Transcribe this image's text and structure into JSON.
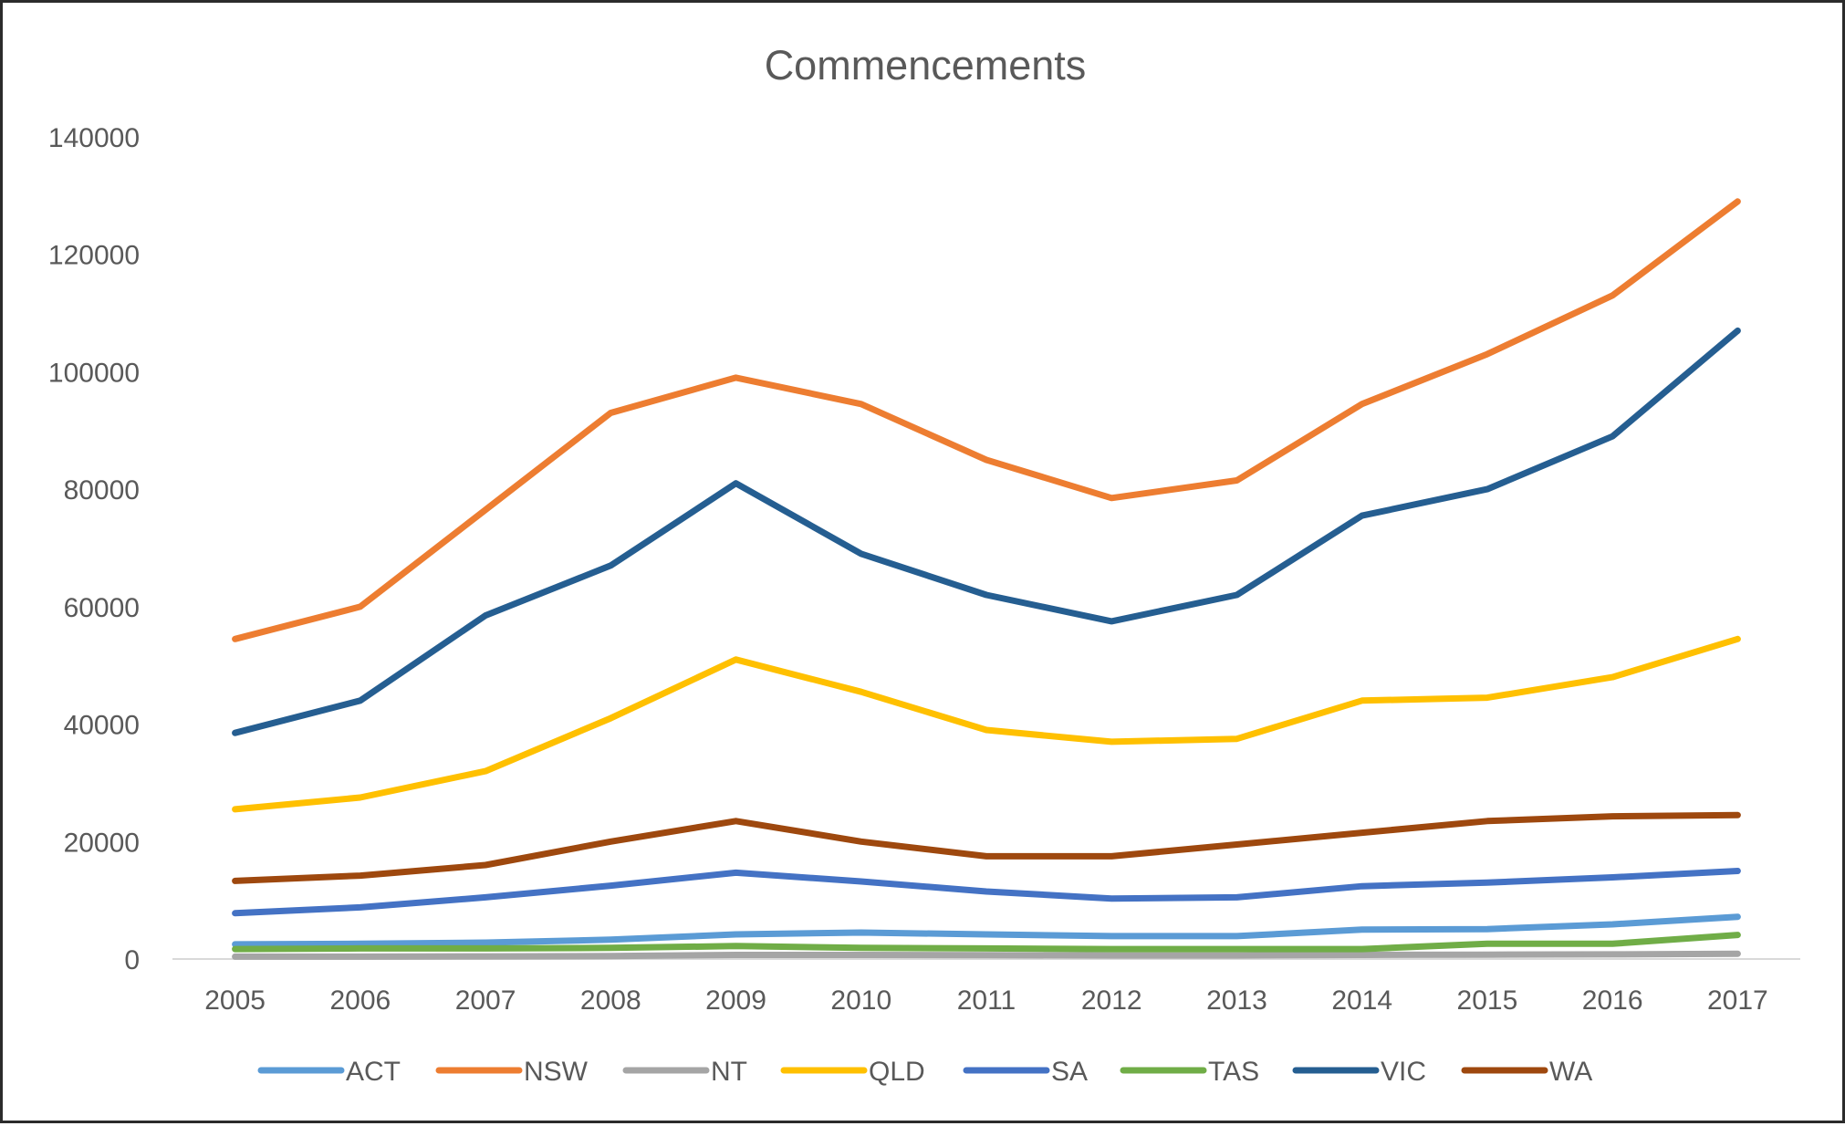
{
  "chart_data": {
    "type": "line",
    "title": "Commencements",
    "xlabel": "",
    "ylabel": "",
    "ylim": [
      0,
      140000
    ],
    "yticks": [
      0,
      20000,
      40000,
      60000,
      80000,
      100000,
      120000,
      140000
    ],
    "ytick_labels": [
      "0",
      "20000",
      "40000",
      "60000",
      "80000",
      "100000",
      "120000",
      "140000"
    ],
    "categories": [
      "2005",
      "2006",
      "2007",
      "2008",
      "2009",
      "2010",
      "2011",
      "2012",
      "2013",
      "2014",
      "2015",
      "2016",
      "2017"
    ],
    "grid": "horizontal-none",
    "legend_position": "bottom",
    "series": [
      {
        "name": "ACT",
        "color": "#5b9bd5",
        "values": [
          2500,
          2600,
          2800,
          3300,
          4200,
          4500,
          4200,
          3900,
          3900,
          5000,
          5100,
          5900,
          7200
        ]
      },
      {
        "name": "NSW",
        "color": "#ed7d31",
        "values": [
          54500,
          60000,
          76500,
          93000,
          99000,
          94500,
          85000,
          78500,
          81500,
          94500,
          103000,
          113000,
          129000
        ]
      },
      {
        "name": "NT",
        "color": "#a5a5a5",
        "values": [
          400,
          400,
          450,
          500,
          700,
          700,
          650,
          600,
          600,
          700,
          750,
          800,
          900
        ]
      },
      {
        "name": "QLD",
        "color": "#ffc000",
        "values": [
          25500,
          27500,
          32000,
          41000,
          51000,
          45500,
          39000,
          37000,
          37500,
          44000,
          44500,
          48000,
          54500
        ]
      },
      {
        "name": "SA",
        "color": "#4472c4",
        "values": [
          7800,
          8800,
          10500,
          12500,
          14700,
          13200,
          11500,
          10300,
          10500,
          12400,
          13000,
          13900,
          15000
        ]
      },
      {
        "name": "TAS",
        "color": "#70ad47",
        "values": [
          1700,
          1800,
          1800,
          1900,
          2200,
          1900,
          1800,
          1700,
          1700,
          1700,
          2600,
          2600,
          4100
        ]
      },
      {
        "name": "VIC",
        "color": "#255e91",
        "values": [
          38500,
          44000,
          58500,
          67000,
          81000,
          69000,
          62000,
          57500,
          62000,
          75500,
          80000,
          89000,
          107000
        ]
      },
      {
        "name": "WA",
        "color": "#9e480e",
        "values": [
          13300,
          14200,
          16000,
          20000,
          23500,
          20000,
          17500,
          17500,
          19500,
          21500,
          23500,
          24300,
          24500
        ]
      }
    ]
  }
}
